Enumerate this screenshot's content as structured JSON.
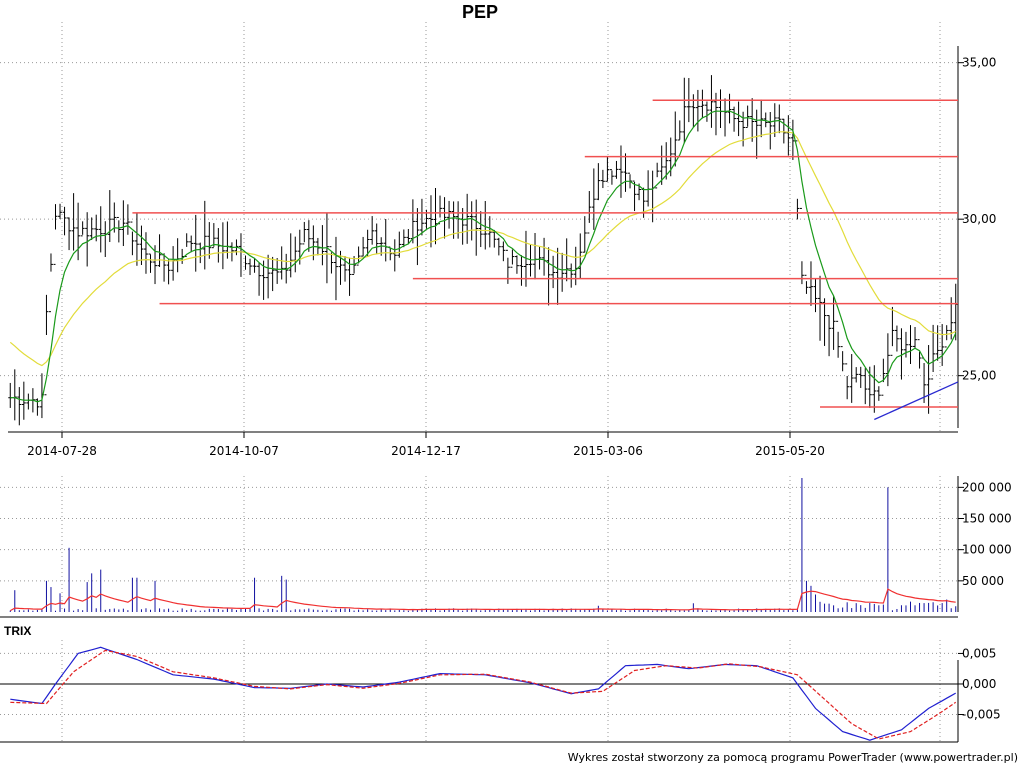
{
  "chart_data": [
    {
      "type": "ohlc",
      "title": "PEP",
      "x_dates": [
        "2014-07-28",
        "2014-10-07",
        "2014-12-17",
        "2015-03-06",
        "2015-05-20"
      ],
      "ylim": [
        23.2,
        36.3
      ],
      "y_ticks": [
        25,
        30,
        35
      ],
      "y_tick_labels": [
        "25,00",
        "30,00",
        "35,00"
      ],
      "bar_count": 210,
      "price_anchors": [
        [
          0,
          24.3
        ],
        [
          7,
          24.2
        ],
        [
          8,
          27.0
        ],
        [
          10,
          30.2
        ],
        [
          15,
          29.6
        ],
        [
          20,
          29.7
        ],
        [
          25,
          29.9
        ],
        [
          30,
          28.8
        ],
        [
          35,
          28.5
        ],
        [
          40,
          29.3
        ],
        [
          45,
          29.2
        ],
        [
          50,
          29.0
        ],
        [
          55,
          28.4
        ],
        [
          60,
          28.2
        ],
        [
          65,
          29.5
        ],
        [
          70,
          29.0
        ],
        [
          75,
          28.0
        ],
        [
          80,
          29.6
        ],
        [
          85,
          28.9
        ],
        [
          90,
          29.9
        ],
        [
          95,
          30.1
        ],
        [
          100,
          30.0
        ],
        [
          105,
          29.7
        ],
        [
          110,
          28.6
        ],
        [
          115,
          28.8
        ],
        [
          120,
          28.3
        ],
        [
          125,
          28.5
        ],
        [
          130,
          31.4
        ],
        [
          135,
          31.7
        ],
        [
          140,
          30.6
        ],
        [
          145,
          31.8
        ],
        [
          150,
          33.8
        ],
        [
          155,
          33.7
        ],
        [
          160,
          33.2
        ],
        [
          165,
          33.0
        ],
        [
          170,
          33.0
        ],
        [
          173,
          32.4
        ],
        [
          175,
          28.0
        ],
        [
          178,
          27.4
        ],
        [
          182,
          26.5
        ],
        [
          185,
          24.7
        ],
        [
          188,
          25.0
        ],
        [
          190,
          24.2
        ],
        [
          192,
          24.6
        ],
        [
          195,
          26.2
        ],
        [
          198,
          25.9
        ],
        [
          200,
          26.3
        ],
        [
          202,
          24.8
        ],
        [
          205,
          25.8
        ],
        [
          207,
          26.5
        ],
        [
          209,
          27.2
        ]
      ],
      "resistance_lines": [
        {
          "level": 33.8,
          "from": 142,
          "to": 210
        },
        {
          "level": 32.0,
          "from": 127,
          "to": 210
        },
        {
          "level": 30.2,
          "from": 27,
          "to": 210
        },
        {
          "level": 28.1,
          "from": 89,
          "to": 210
        },
        {
          "level": 27.3,
          "from": 33,
          "to": 210
        },
        {
          "level": 24.0,
          "from": 179,
          "to": 210
        }
      ],
      "trend_line": {
        "from": [
          191,
          23.6
        ],
        "to": [
          210,
          24.8
        ]
      },
      "colors": {
        "bars": "#000000",
        "fast_ma": "#1a9a1a",
        "slow_ma": "#e2dc3a",
        "levels": "#f05050",
        "trend": "#2a2ad0"
      }
    },
    {
      "type": "bar",
      "title": "",
      "y_ticks": [
        50000,
        100000,
        150000,
        200000
      ],
      "y_tick_labels": [
        "50 000",
        "100 000",
        "150 000",
        "200 000"
      ],
      "ylim": [
        0,
        215000
      ],
      "spikes": [
        [
          1,
          35000
        ],
        [
          8,
          50000
        ],
        [
          9,
          40000
        ],
        [
          11,
          30000
        ],
        [
          13,
          103000
        ],
        [
          17,
          48000
        ],
        [
          18,
          62000
        ],
        [
          20,
          68000
        ],
        [
          27,
          55000
        ],
        [
          28,
          55000
        ],
        [
          32,
          50000
        ],
        [
          54,
          55000
        ],
        [
          60,
          58000
        ],
        [
          61,
          52000
        ],
        [
          130,
          10000
        ],
        [
          151,
          14000
        ],
        [
          175,
          215000
        ],
        [
          176,
          50000
        ],
        [
          177,
          42000
        ],
        [
          178,
          28000
        ],
        [
          194,
          200000
        ],
        [
          207,
          20000
        ]
      ],
      "colors": {
        "bars": "#1010a0",
        "ma": "#f03030"
      }
    },
    {
      "type": "line",
      "title": "TRIX",
      "y_ticks": [
        0.005,
        0.0,
        -0.005
      ],
      "y_tick_labels": [
        "0,005",
        "0,000",
        "-0,005"
      ],
      "ylim": [
        -0.0095,
        0.0072
      ],
      "series": [
        {
          "color": "#2020d0",
          "values_anchors": [
            [
              0,
              -0.0025
            ],
            [
              7,
              -0.0032
            ],
            [
              10,
              0.0
            ],
            [
              15,
              0.005
            ],
            [
              20,
              0.006
            ],
            [
              28,
              0.004
            ],
            [
              36,
              0.0015
            ],
            [
              45,
              0.0008
            ],
            [
              54,
              -0.0006
            ],
            [
              62,
              -0.0007
            ],
            [
              70,
              0.0
            ],
            [
              78,
              -0.0005
            ],
            [
              86,
              0.0003
            ],
            [
              95,
              0.0017
            ],
            [
              105,
              0.0015
            ],
            [
              115,
              0.0002
            ],
            [
              124,
              -0.0016
            ],
            [
              130,
              -0.0008
            ],
            [
              136,
              0.003
            ],
            [
              143,
              0.0032
            ],
            [
              150,
              0.0025
            ],
            [
              158,
              0.0032
            ],
            [
              165,
              0.003
            ],
            [
              173,
              0.001
            ],
            [
              178,
              -0.004
            ],
            [
              184,
              -0.0078
            ],
            [
              190,
              -0.0092
            ],
            [
              197,
              -0.0075
            ],
            [
              203,
              -0.004
            ],
            [
              209,
              -0.0015
            ]
          ]
        },
        {
          "color": "#e02020",
          "dashed": true,
          "values_anchors": [
            [
              0,
              -0.003
            ],
            [
              8,
              -0.0032
            ],
            [
              14,
              0.002
            ],
            [
              21,
              0.0055
            ],
            [
              28,
              0.0045
            ],
            [
              36,
              0.002
            ],
            [
              45,
              0.001
            ],
            [
              54,
              -0.0004
            ],
            [
              62,
              -0.0008
            ],
            [
              70,
              -0.0001
            ],
            [
              78,
              -0.0007
            ],
            [
              86,
              0.0001
            ],
            [
              95,
              0.0015
            ],
            [
              105,
              0.0016
            ],
            [
              115,
              0.0003
            ],
            [
              124,
              -0.0015
            ],
            [
              131,
              -0.0012
            ],
            [
              138,
              0.0022
            ],
            [
              145,
              0.003
            ],
            [
              152,
              0.0026
            ],
            [
              159,
              0.0033
            ],
            [
              166,
              0.0028
            ],
            [
              174,
              0.0015
            ],
            [
              180,
              -0.0025
            ],
            [
              186,
              -0.0065
            ],
            [
              192,
              -0.009
            ],
            [
              199,
              -0.0078
            ],
            [
              205,
              -0.005
            ],
            [
              209,
              -0.003
            ]
          ]
        }
      ]
    }
  ],
  "footer": "Wykres został stworzony za pomocą programu PowerTrader (www.powertrader.pl)"
}
